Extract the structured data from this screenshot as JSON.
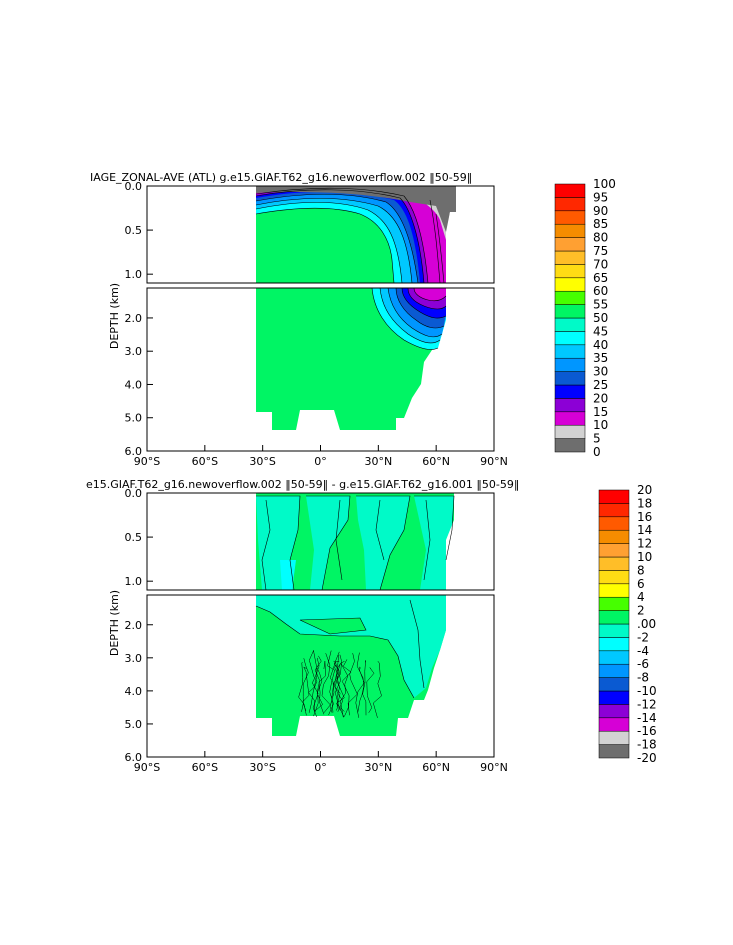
{
  "colors": {
    "level_fills_top": [
      "#6e6e6e",
      "#d2d2d2",
      "#d600d6",
      "#8c00d6",
      "#0000ff",
      "#0a5ad2",
      "#0096ff",
      "#00c8ff",
      "#00ffff",
      "#00fac8",
      "#00f564",
      "#46ff00",
      "#ffff00",
      "#ffdc14",
      "#ffbe28",
      "#ffa032",
      "#f58c00",
      "#ff5a00",
      "#ff2800",
      "#ff0000",
      "#c80000"
    ],
    "level_fills_bottom": [
      "#6e6e6e",
      "#d2d2d2",
      "#d600d6",
      "#8c00d6",
      "#0000ff",
      "#0a5ad2",
      "#0096ff",
      "#00c8ff",
      "#00ffff",
      "#00fac8",
      "#00f564",
      "#46ff00",
      "#ffff00",
      "#ffdc14",
      "#ffbe28",
      "#ffa032",
      "#f58c00",
      "#ff5a00",
      "#ff2800",
      "#ff0000",
      "#c80000"
    ]
  },
  "chart_data": [
    {
      "type": "heatmap",
      "title": "IAGE_ZONAL-AVE (ATL) g.e15.GIAF.T62_g16.newoverflow.002 ‖50-59‖",
      "ylabel": "DEPTH (km)",
      "xlabel": "",
      "x_ticks": [
        "90°S",
        "60°S",
        "30°S",
        "0°",
        "30°N",
        "60°N",
        "90°N"
      ],
      "x_tick_values": [
        -90,
        -60,
        -30,
        0,
        30,
        60,
        90
      ],
      "xlim": [
        -90,
        90
      ],
      "y_ticks_upper": [
        "0.0",
        "0.5",
        "1.0"
      ],
      "y_ticks_lower": [
        "2.0",
        "3.0",
        "4.0",
        "5.0",
        "6.0"
      ],
      "ylim": [
        0,
        6
      ],
      "y_break": 1.1,
      "colorbar_labels": [
        "100",
        "95",
        "90",
        "85",
        "80",
        "75",
        "70",
        "65",
        "60",
        "55",
        "50",
        "45",
        "40",
        "35",
        "30",
        "25",
        "20",
        "15",
        "10",
        "5",
        "0"
      ],
      "colorbar_levels": [
        0,
        5,
        10,
        15,
        20,
        25,
        30,
        35,
        40,
        45,
        50,
        55,
        60,
        65,
        70,
        75,
        80,
        85,
        90,
        95,
        100
      ],
      "grid": false
    },
    {
      "type": "heatmap",
      "title": "e15.GIAF.T62_g16.newoverflow.002 ‖50-59‖ - g.e15.GIAF.T62_g16.001 ‖50-59‖",
      "ylabel": "DEPTH (km)",
      "xlabel": "",
      "x_ticks": [
        "90°S",
        "60°S",
        "30°S",
        "0°",
        "30°N",
        "60°N",
        "90°N"
      ],
      "x_tick_values": [
        -90,
        -60,
        -30,
        0,
        30,
        60,
        90
      ],
      "xlim": [
        -90,
        90
      ],
      "y_ticks_upper": [
        "0.0",
        "0.5",
        "1.0"
      ],
      "y_ticks_lower": [
        "2.0",
        "3.0",
        "4.0",
        "5.0",
        "6.0"
      ],
      "ylim": [
        0,
        6
      ],
      "y_break": 1.1,
      "colorbar_labels": [
        "20",
        "18",
        "16",
        "14",
        "12",
        "10",
        "8",
        "6",
        "4",
        "2",
        ".00",
        "-2",
        "-4",
        "-6",
        "-8",
        "-10",
        "-12",
        "-14",
        "-16",
        "-18",
        "-20"
      ],
      "colorbar_levels": [
        -20,
        -18,
        -16,
        -14,
        -12,
        -10,
        -8,
        -6,
        -4,
        -2,
        0,
        2,
        4,
        6,
        8,
        10,
        12,
        14,
        16,
        18,
        20
      ],
      "grid": false
    }
  ]
}
